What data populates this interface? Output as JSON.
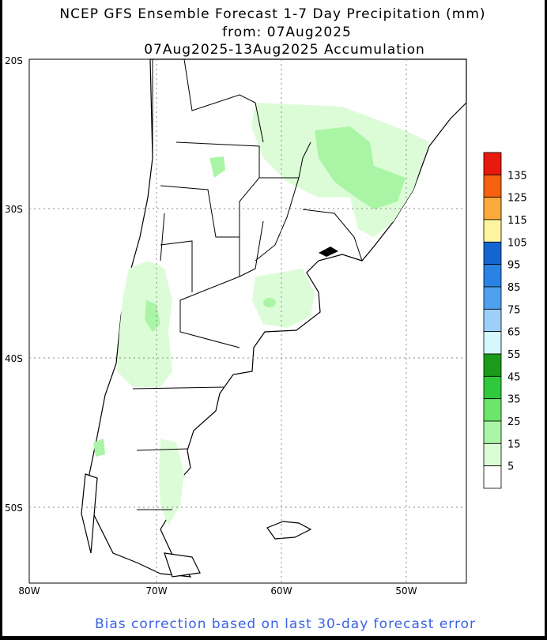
{
  "header": {
    "lines": [
      "NCEP GFS Ensemble Forecast 1-7 Day Precipitation (mm)",
      "from: 07Aug2025",
      "07Aug2025-13Aug2025 Accumulation"
    ]
  },
  "map": {
    "lat_labels": [
      "20S",
      "30S",
      "40S",
      "50S"
    ],
    "lon_labels": [
      "80W",
      "70W",
      "60W",
      "50W"
    ]
  },
  "legend": {
    "colors": [
      "#e8190f",
      "#f5610f",
      "#fbab3c",
      "#fff5a0",
      "#1565d0",
      "#2a82e4",
      "#4fa0ee",
      "#9ecff8",
      "#d6f7fc",
      "#1a9c1a",
      "#30c83c",
      "#6de56b",
      "#aaf5a5",
      "#dcfcd7",
      "#ffffff"
    ],
    "labels": [
      135,
      125,
      115,
      105,
      95,
      85,
      75,
      65,
      55,
      45,
      35,
      25,
      15,
      5
    ]
  },
  "footer": "Bias correction based on last 30-day forecast error"
}
